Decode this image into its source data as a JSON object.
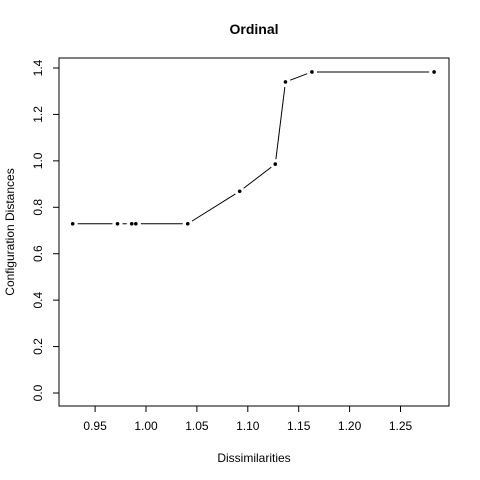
{
  "chart_data": {
    "type": "line",
    "title": "Ordinal",
    "xlabel": "Dissimilarities",
    "ylabel": "Configuration Distances",
    "xlim": [
      0.92,
      1.29
    ],
    "ylim": [
      0.0,
      1.43
    ],
    "x_ticks": [
      0.95,
      1.0,
      1.05,
      1.1,
      1.15,
      1.2,
      1.25
    ],
    "x_tick_labels": [
      "0.95",
      "1.00",
      "1.05",
      "1.10",
      "1.15",
      "1.20",
      "1.25"
    ],
    "y_ticks": [
      0.0,
      0.2,
      0.4,
      0.6,
      0.8,
      1.0,
      1.2,
      1.4
    ],
    "y_tick_labels": [
      "0.0",
      "0.2",
      "0.4",
      "0.6",
      "0.8",
      "1.0",
      "1.2",
      "1.4"
    ],
    "grid": false,
    "series": [
      {
        "x": [
          0.928,
          0.972,
          0.986,
          0.99,
          1.041,
          1.092,
          1.127,
          1.137,
          1.163,
          1.283
        ],
        "y": [
          0.729,
          0.729,
          0.729,
          0.729,
          0.729,
          0.869,
          0.986,
          1.34,
          1.383,
          1.383
        ]
      }
    ]
  }
}
